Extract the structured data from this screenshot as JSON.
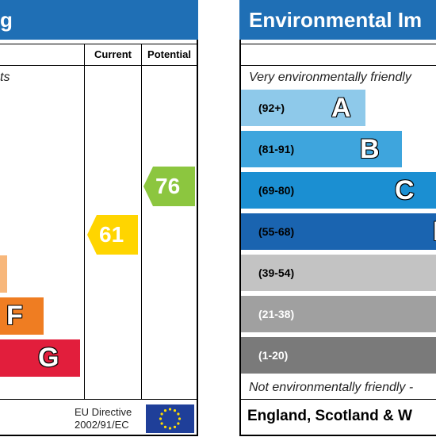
{
  "left_panel": {
    "title": "g",
    "columns": {
      "current": "Current",
      "potential": "Potential"
    },
    "top_text": "ts",
    "current_rating": {
      "value": "61",
      "color": "#ffd500"
    },
    "potential_rating": {
      "value": "76",
      "color": "#8cc63f"
    },
    "bands": [
      {
        "letter": "",
        "color": "#f7b77b"
      },
      {
        "letter": "F",
        "color": "#ef7d22"
      },
      {
        "letter": "G",
        "color": "#e21e3c"
      }
    ],
    "footer": {
      "directive_line1": "EU Directive",
      "directive_line2": "2002/91/EC",
      "flag_icon": "eu-flag-icon"
    }
  },
  "right_panel": {
    "title": "Environmental Im",
    "top_text": "Very environmentally friendly",
    "bottom_text": "Not environmentally friendly -",
    "footer": "England, Scotland & W",
    "bands": [
      {
        "range": "(92+)",
        "letter": "A",
        "color": "#8ec9ea",
        "text_color": "#000000"
      },
      {
        "range": "(81-91)",
        "letter": "B",
        "color": "#3ea5dd",
        "text_color": "#000000"
      },
      {
        "range": "(69-80)",
        "letter": "C",
        "color": "#1b8fd2",
        "text_color": "#000000"
      },
      {
        "range": "(55-68)",
        "letter": "D",
        "color": "#1a64b0",
        "text_color": "#000000"
      },
      {
        "range": "(39-54)",
        "letter": "",
        "color": "#c3c3c3",
        "text_color": "#000000"
      },
      {
        "range": "(21-38)",
        "letter": "",
        "color": "#a0a0a0",
        "text_color": "#ffffff"
      },
      {
        "range": "(1-20)",
        "letter": "",
        "color": "#7a7a7a",
        "text_color": "#ffffff"
      }
    ]
  }
}
